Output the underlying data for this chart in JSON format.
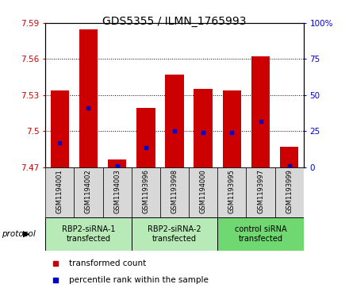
{
  "title": "GDS5355 / ILMN_1765993",
  "samples": [
    "GSM1194001",
    "GSM1194002",
    "GSM1194003",
    "GSM1193996",
    "GSM1193998",
    "GSM1194000",
    "GSM1193995",
    "GSM1193997",
    "GSM1193999"
  ],
  "red_values": [
    7.534,
    7.585,
    7.476,
    7.519,
    7.547,
    7.535,
    7.534,
    7.562,
    7.487
  ],
  "blue_values": [
    7.49,
    7.519,
    7.471,
    7.486,
    7.5,
    7.499,
    7.499,
    7.508,
    7.471
  ],
  "ylim_left": [
    7.47,
    7.59
  ],
  "ylim_right": [
    0,
    100
  ],
  "yticks_left": [
    7.47,
    7.5,
    7.53,
    7.56,
    7.59
  ],
  "yticks_right": [
    0,
    25,
    50,
    75,
    100
  ],
  "groups": [
    {
      "label": "RBP2-siRNA-1\ntransfected",
      "indices": [
        0,
        1,
        2
      ],
      "color": "#b8eab8"
    },
    {
      "label": "RBP2-siRNA-2\ntransfected",
      "indices": [
        3,
        4,
        5
      ],
      "color": "#b8eab8"
    },
    {
      "label": "control siRNA\ntransfected",
      "indices": [
        6,
        7,
        8
      ],
      "color": "#70d870"
    }
  ],
  "bar_bottom": 7.47,
  "bar_width": 0.65,
  "red_color": "#cc0000",
  "blue_color": "#0000cc",
  "legend_red": "transformed count",
  "legend_blue": "percentile rank within the sample",
  "protocol_label": "protocol"
}
